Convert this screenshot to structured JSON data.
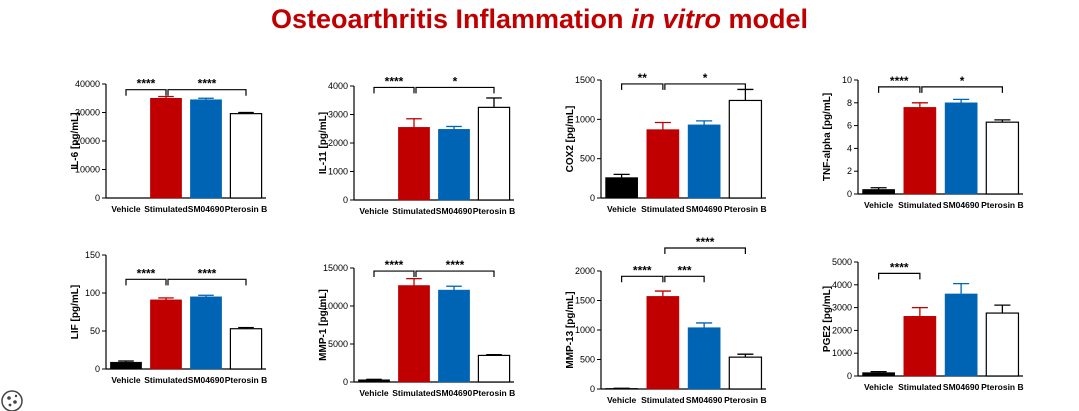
{
  "title": {
    "main": "Osteoarthritis Inflammation ",
    "italic": "in vitro",
    "end": " model"
  },
  "colors": {
    "vehicle": "#000000",
    "stimulated": "#c00000",
    "sm04690": "#0064b4",
    "pterosin": "#ffffff"
  },
  "chart_data": [
    {
      "type": "bar",
      "ylabel": "IL-6 [pg/mL]",
      "categories": [
        "Vehicle",
        "Stimulated",
        "SM04690",
        "Pterosin B"
      ],
      "values": [
        0,
        35000,
        34500,
        29600
      ],
      "errors": [
        0,
        600,
        500,
        400
      ],
      "ylim": [
        0,
        40000
      ],
      "yticks": [
        0,
        10000,
        20000,
        30000,
        40000
      ],
      "significance": [
        {
          "from": 0,
          "to": 1,
          "label": "****",
          "y": 38000
        },
        {
          "from": 1,
          "to": 3,
          "label": "****",
          "y": 38000
        }
      ]
    },
    {
      "type": "bar",
      "ylabel": "IL-11 [pg/mL]",
      "categories": [
        "Vehicle",
        "Stimulated",
        "SM04690",
        "Pterosin B"
      ],
      "values": [
        0,
        2550,
        2480,
        3250
      ],
      "errors": [
        0,
        300,
        100,
        330
      ],
      "ylim": [
        0,
        4000
      ],
      "yticks": [
        0,
        1000,
        2000,
        3000,
        4000
      ],
      "significance": [
        {
          "from": 0,
          "to": 1,
          "label": "****",
          "y": 3950
        },
        {
          "from": 1,
          "to": 3,
          "label": "*",
          "y": 3950
        }
      ]
    },
    {
      "type": "bar",
      "ylabel": "COX2 [pg/mL]",
      "categories": [
        "Vehicle",
        "Stimulated",
        "SM04690",
        "Pterosin B"
      ],
      "values": [
        260,
        870,
        930,
        1240
      ],
      "errors": [
        40,
        90,
        50,
        140
      ],
      "ylim": [
        0,
        1500
      ],
      "yticks": [
        0,
        500,
        1000,
        1500
      ],
      "significance": [
        {
          "from": 0,
          "to": 1,
          "label": "**",
          "y": 1450
        },
        {
          "from": 1,
          "to": 3,
          "label": "*",
          "y": 1450
        }
      ]
    },
    {
      "type": "bar",
      "ylabel": "TNF-alpha [pg/mL]",
      "categories": [
        "Vehicle",
        "Stimulated",
        "SM04690",
        "Pterosin B"
      ],
      "values": [
        0.4,
        7.6,
        8.0,
        6.3
      ],
      "errors": [
        0.15,
        0.4,
        0.3,
        0.2
      ],
      "ylim": [
        0,
        10
      ],
      "yticks": [
        0,
        2,
        4,
        6,
        8,
        10
      ],
      "significance": [
        {
          "from": 0,
          "to": 1,
          "label": "****",
          "y": 9.4
        },
        {
          "from": 1,
          "to": 3,
          "label": "*",
          "y": 9.4
        }
      ]
    },
    {
      "type": "bar",
      "ylabel": "LIF [pg/mL]",
      "categories": [
        "Vehicle",
        "Stimulated",
        "SM04690",
        "Pterosin B"
      ],
      "values": [
        9,
        91,
        95,
        53
      ],
      "errors": [
        1.5,
        2.5,
        2,
        1.5
      ],
      "ylim": [
        0,
        150
      ],
      "yticks": [
        0,
        50,
        100,
        150
      ],
      "significance": [
        {
          "from": 0,
          "to": 1,
          "label": "****",
          "y": 118
        },
        {
          "from": 1,
          "to": 3,
          "label": "****",
          "y": 118
        }
      ]
    },
    {
      "type": "bar",
      "ylabel": "MMP-1 [pg/mL]",
      "categories": [
        "Vehicle",
        "Stimulated",
        "SM04690",
        "Pterosin B"
      ],
      "values": [
        300,
        12700,
        12100,
        3500
      ],
      "errors": [
        50,
        900,
        500,
        100
      ],
      "ylim": [
        0,
        15000
      ],
      "yticks": [
        0,
        5000,
        10000,
        15000
      ],
      "significance": [
        {
          "from": 0,
          "to": 1,
          "label": "****",
          "y": 14600
        },
        {
          "from": 1,
          "to": 3,
          "label": "****",
          "y": 14600
        }
      ]
    },
    {
      "type": "bar",
      "ylabel": "MMP-13 [pg/mL]",
      "categories": [
        "Vehicle",
        "Stimulated",
        "SM04690",
        "Pterosin B"
      ],
      "values": [
        10,
        1570,
        1040,
        540
      ],
      "errors": [
        3,
        90,
        80,
        50
      ],
      "ylim": [
        0,
        2000
      ],
      "yticks": [
        0,
        500,
        1000,
        1500,
        2000
      ],
      "significance": [
        {
          "from": 0,
          "to": 1,
          "label": "****",
          "y": 1910
        },
        {
          "from": 1,
          "to": 2,
          "label": "***",
          "y": 1910
        },
        {
          "from": 1,
          "to": 3,
          "label": "****",
          "y": 2390
        }
      ]
    },
    {
      "type": "bar",
      "ylabel": "PGE2 [pg/mL]",
      "categories": [
        "Vehicle",
        "Stimulated",
        "SM04690",
        "Pterosin B"
      ],
      "values": [
        150,
        2620,
        3600,
        2760
      ],
      "errors": [
        40,
        380,
        450,
        350
      ],
      "ylim": [
        0,
        5000
      ],
      "yticks": [
        0,
        1000,
        2000,
        3000,
        4000,
        5000
      ],
      "significance": [
        {
          "from": 0,
          "to": 1,
          "label": "****",
          "y": 4500
        }
      ]
    }
  ]
}
